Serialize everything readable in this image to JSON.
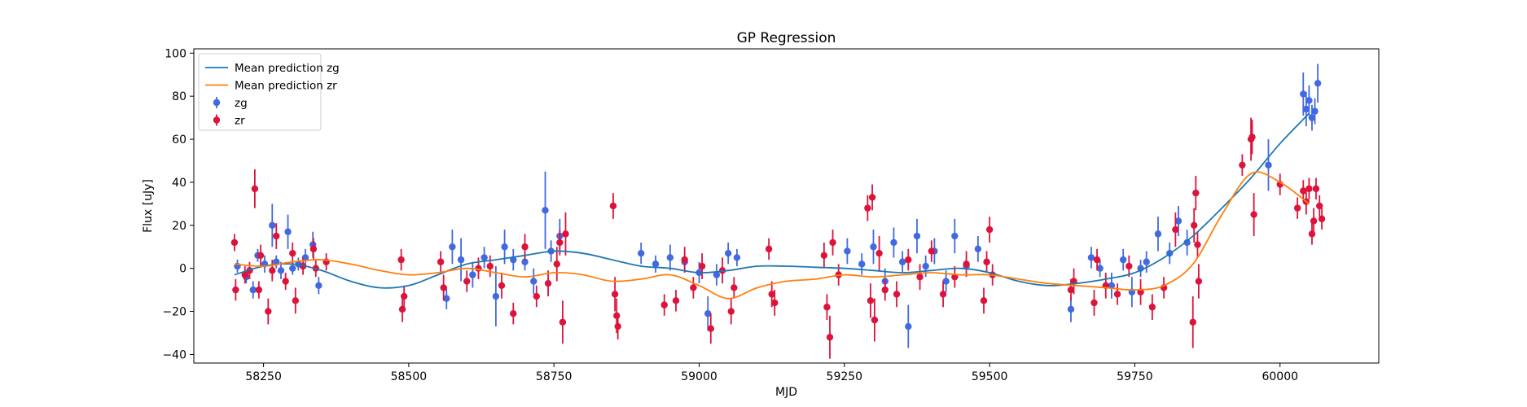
{
  "chart_data": {
    "type": "scatter",
    "title": "GP Regression",
    "xlabel": "MJD",
    "ylabel": "Flux [uJy]",
    "xlim": [
      58130,
      60170
    ],
    "ylim": [
      -44,
      102
    ],
    "xticks": [
      58250,
      58500,
      58750,
      59000,
      59250,
      59500,
      59750,
      60000
    ],
    "yticks": [
      -40,
      -20,
      0,
      20,
      40,
      60,
      80,
      100
    ],
    "legend_position": "upper-left",
    "legend": [
      "Mean prediction zg",
      "Mean prediction zr",
      "zg",
      "zr"
    ],
    "colors": {
      "zg_line": "#1f77b4",
      "zr_line": "#ff7f0e",
      "zg_points": "#4169e1",
      "zr_points": "#dc143c"
    },
    "series": [
      {
        "name": "Mean prediction zg",
        "kind": "line",
        "x": [
          58200,
          58250,
          58300,
          58350,
          58400,
          58450,
          58500,
          58550,
          58600,
          58650,
          58700,
          58750,
          58800,
          58850,
          58900,
          58950,
          59000,
          59050,
          59100,
          59150,
          59200,
          59250,
          59300,
          59350,
          59400,
          59450,
          59500,
          59550,
          59600,
          59650,
          59700,
          59750,
          59800,
          59850,
          59900,
          59950,
          60000,
          60050
        ],
        "y": [
          -3,
          1,
          2,
          -1,
          -6,
          -9,
          -8,
          -3,
          2,
          4,
          6,
          8,
          7,
          4,
          1,
          0,
          -2,
          -1,
          1,
          1,
          0.5,
          0,
          -1,
          -2,
          -1,
          0,
          -2,
          -6,
          -8,
          -7,
          -5,
          -2,
          5,
          15,
          28,
          42,
          58,
          72
        ]
      },
      {
        "name": "Mean prediction zr",
        "kind": "line",
        "x": [
          58200,
          58250,
          58300,
          58350,
          58400,
          58450,
          58500,
          58550,
          58600,
          58650,
          58700,
          58750,
          58800,
          58850,
          58900,
          58950,
          59000,
          59050,
          59100,
          59150,
          59200,
          59250,
          59300,
          59350,
          59400,
          59450,
          59500,
          59550,
          59600,
          59650,
          59700,
          59750,
          59800,
          59850,
          59900,
          59950,
          60000,
          60050
        ],
        "y": [
          2,
          1,
          3,
          4,
          2,
          -1,
          -3,
          -2,
          0,
          -2,
          -4,
          -2,
          -3,
          -6,
          -5,
          -3,
          -8,
          -14,
          -9,
          -6,
          -5,
          -3,
          -4,
          -3,
          -2,
          -3,
          -3,
          -5,
          -7,
          -8,
          -9,
          -10,
          -8,
          2,
          25,
          44,
          40,
          30
        ]
      },
      {
        "name": "zg",
        "kind": "errorbar-scatter",
        "x": [
          58205,
          58220,
          58232,
          58240,
          58252,
          58265,
          58272,
          58280,
          58292,
          58300,
          58310,
          58322,
          58335,
          58345,
          58565,
          58575,
          58590,
          58610,
          58630,
          58650,
          58665,
          58680,
          58700,
          58715,
          58735,
          58745,
          58760,
          58900,
          58925,
          58950,
          58975,
          59000,
          59015,
          59030,
          59050,
          59065,
          59255,
          59280,
          59300,
          59320,
          59335,
          59350,
          59360,
          59375,
          59390,
          59405,
          59425,
          59440,
          59460,
          59480,
          59640,
          59675,
          59690,
          59710,
          59730,
          59745,
          59760,
          59770,
          59790,
          59810,
          59825,
          59840,
          59980,
          60040,
          60045,
          60050,
          60055,
          60060,
          60065
        ],
        "y": [
          1,
          -4,
          -10,
          6,
          2,
          20,
          3,
          -1,
          17,
          0,
          2,
          5,
          11,
          -8,
          -14,
          10,
          4,
          -3,
          5,
          -13,
          10,
          4,
          3,
          -6,
          27,
          8,
          15,
          7,
          2,
          5,
          3,
          -2,
          -21,
          -3,
          7,
          5,
          8,
          2,
          10,
          -6,
          12,
          3,
          -27,
          15,
          1,
          8,
          -6,
          15,
          1,
          9,
          -19,
          5,
          0,
          -8,
          4,
          -11,
          0,
          3,
          16,
          7,
          22,
          12,
          48,
          81,
          74,
          78,
          70,
          73,
          86
        ],
        "yerr": [
          3,
          3,
          4,
          3,
          4,
          10,
          3,
          4,
          8,
          3,
          3,
          4,
          6,
          4,
          5,
          8,
          10,
          6,
          5,
          14,
          8,
          5,
          4,
          6,
          18,
          5,
          8,
          5,
          4,
          6,
          4,
          5,
          8,
          5,
          5,
          4,
          6,
          5,
          8,
          6,
          7,
          5,
          10,
          8,
          5,
          6,
          5,
          8,
          4,
          6,
          6,
          5,
          4,
          6,
          5,
          7,
          4,
          5,
          8,
          5,
          7,
          6,
          12,
          10,
          8,
          7,
          6,
          6,
          9
        ]
      },
      {
        "name": "zr",
        "kind": "errorbar-scatter",
        "x": [
          58200,
          58202,
          58218,
          58226,
          58235,
          58242,
          58245,
          58258,
          58265,
          58272,
          58288,
          58300,
          58305,
          58318,
          58336,
          58340,
          58358,
          58487,
          58489,
          58492,
          58555,
          58560,
          58600,
          58620,
          58640,
          58660,
          58680,
          58700,
          58720,
          58740,
          58755,
          58760,
          58765,
          58770,
          58852,
          58855,
          58858,
          58860,
          58940,
          58960,
          58975,
          58990,
          59005,
          59020,
          59040,
          59055,
          59060,
          59120,
          59125,
          59130,
          59215,
          59220,
          59225,
          59230,
          59240,
          59290,
          59295,
          59298,
          59302,
          59310,
          59320,
          59340,
          59360,
          59380,
          59400,
          59420,
          59440,
          59460,
          59490,
          59495,
          59500,
          59505,
          59640,
          59645,
          59680,
          59685,
          59700,
          59720,
          59740,
          59760,
          59780,
          59800,
          59820,
          59850,
          59852,
          59855,
          59858,
          59860,
          59935,
          59950,
          59952,
          59955,
          60000,
          60030,
          60040,
          60045,
          60050,
          60055,
          60058,
          60062,
          60068,
          60072
        ],
        "y": [
          12,
          -10,
          -3,
          -1,
          37,
          -10,
          6,
          -20,
          -1,
          15,
          -6,
          7,
          -15,
          1,
          9,
          0,
          3,
          4,
          -19,
          -13,
          3,
          -9,
          -6,
          0,
          1,
          -8,
          -21,
          10,
          -13,
          -7,
          2,
          12,
          -25,
          16,
          29,
          -12,
          -22,
          -27,
          -17,
          -15,
          4,
          -9,
          1,
          -28,
          -1,
          -20,
          -9,
          9,
          -12,
          -16,
          6,
          -18,
          -32,
          12,
          -3,
          28,
          -15,
          33,
          -24,
          7,
          -10,
          -12,
          4,
          -4,
          8,
          -12,
          -4,
          2,
          -15,
          3,
          18,
          -3,
          -10,
          -6,
          -16,
          4,
          -8,
          -12,
          1,
          -11,
          -18,
          -9,
          18,
          -25,
          20,
          35,
          11,
          -6,
          48,
          60,
          61,
          25,
          39,
          28,
          36,
          31,
          37,
          16,
          22,
          37,
          29,
          23
        ],
        "yerr": [
          4,
          5,
          4,
          4,
          9,
          4,
          5,
          6,
          5,
          6,
          4,
          5,
          6,
          4,
          5,
          4,
          4,
          5,
          6,
          5,
          5,
          6,
          5,
          5,
          5,
          6,
          5,
          6,
          5,
          6,
          8,
          6,
          10,
          10,
          6,
          8,
          8,
          6,
          5,
          5,
          6,
          5,
          6,
          7,
          6,
          6,
          5,
          5,
          6,
          6,
          6,
          6,
          10,
          6,
          5,
          6,
          8,
          6,
          10,
          8,
          5,
          6,
          5,
          6,
          5,
          6,
          5,
          6,
          6,
          5,
          6,
          5,
          5,
          6,
          6,
          5,
          6,
          5,
          5,
          6,
          6,
          5,
          8,
          12,
          8,
          8,
          6,
          8,
          5,
          10,
          8,
          10,
          5,
          5,
          5,
          6,
          5,
          5,
          6,
          5,
          5,
          5
        ]
      }
    ]
  }
}
